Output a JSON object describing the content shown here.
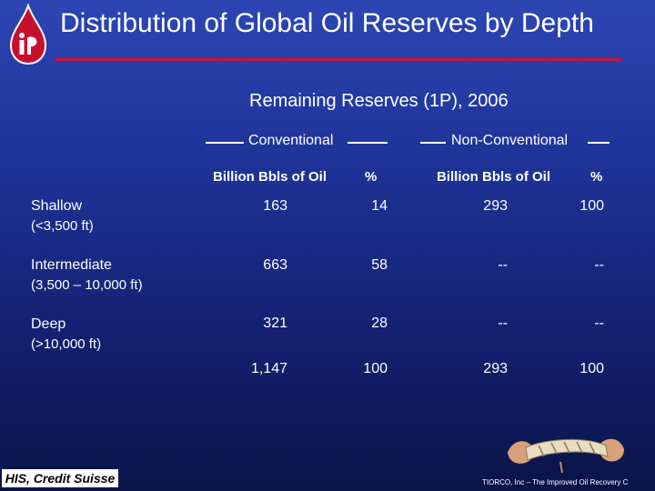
{
  "slide": {
    "title": "Distribution of Global Oil Reserves by Depth",
    "subtitle": "Remaining Reserves (1P), 2006"
  },
  "groups": {
    "conventional": "Conventional",
    "non_conventional": "Non-Conventional"
  },
  "column_headers": {
    "conv_volume": "Billion Bbls of Oil",
    "conv_pct": "%",
    "nonconv_volume": "Billion Bbls of Oil",
    "nonconv_pct": "%"
  },
  "rows": [
    {
      "label": "Shallow",
      "sublabel": "(<3,500 ft)",
      "conv_volume": "163",
      "conv_pct": "14",
      "nonconv_volume": "293",
      "nonconv_pct": "100"
    },
    {
      "label": "Intermediate",
      "sublabel": "(3,500 – 10,000 ft)",
      "conv_volume": "663",
      "conv_pct": "58",
      "nonconv_volume": "--",
      "nonconv_pct": "--"
    },
    {
      "label": "Deep",
      "sublabel": "(>10,000 ft)",
      "conv_volume": "321",
      "conv_pct": "28",
      "nonconv_volume": "--",
      "nonconv_pct": "--"
    }
  ],
  "totals": {
    "conv_volume": "1,147",
    "conv_pct": "100",
    "nonconv_volume": "293",
    "nonconv_pct": "100"
  },
  "source": "HIS, Credit Suisse",
  "footer": "TIORCO, Inc – The Improved Oil Recovery C",
  "colors": {
    "accent": "#c8102e",
    "background": "#1e3296"
  }
}
